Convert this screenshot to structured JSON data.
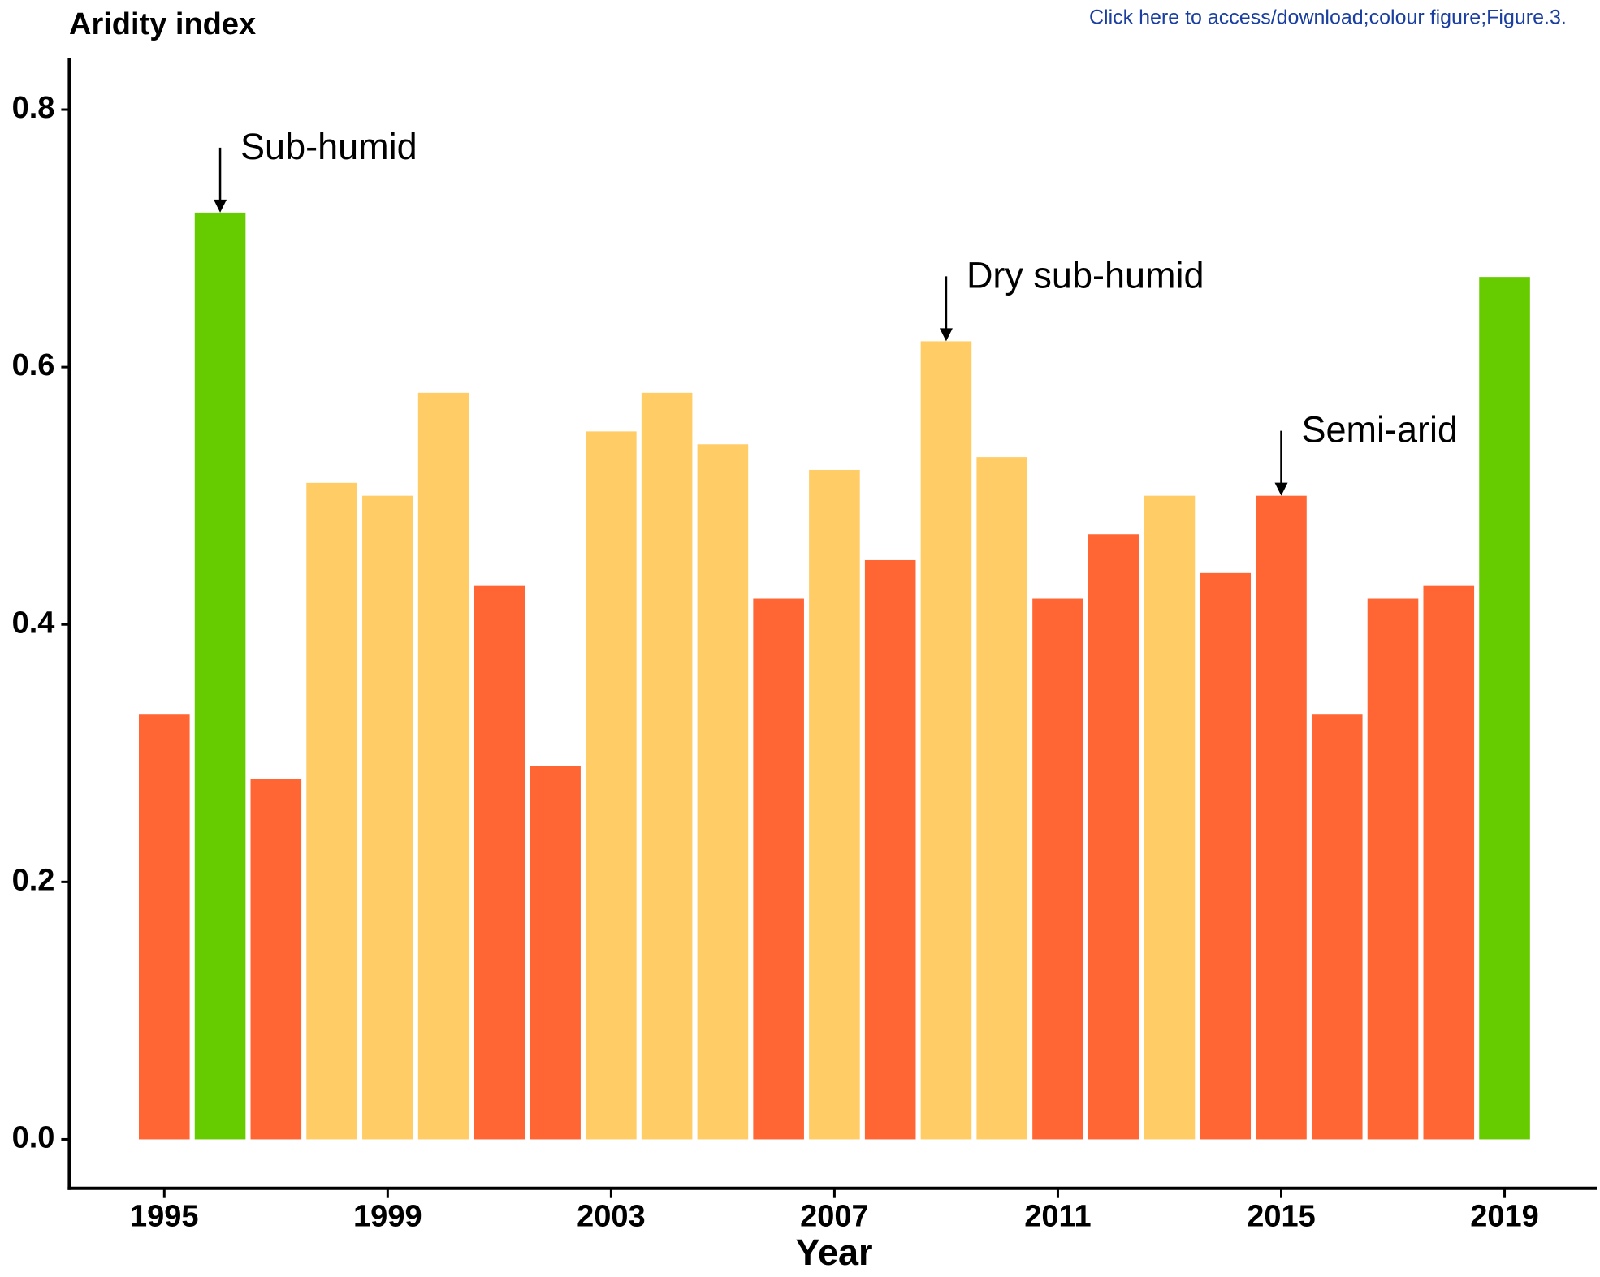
{
  "header_link": "Click here to access/download;colour figure;Figure.3.",
  "chart_data": {
    "type": "bar",
    "title": "Aridity index",
    "x_label": "Year",
    "x": [
      1995,
      1996,
      1997,
      1998,
      1999,
      2000,
      2001,
      2002,
      2003,
      2004,
      2005,
      2006,
      2007,
      2008,
      2009,
      2010,
      2011,
      2012,
      2013,
      2014,
      2015,
      2016,
      2017,
      2018,
      2019
    ],
    "values": [
      0.33,
      0.72,
      0.28,
      0.51,
      0.5,
      0.58,
      0.43,
      0.29,
      0.55,
      0.58,
      0.54,
      0.42,
      0.52,
      0.45,
      0.62,
      0.53,
      0.42,
      0.47,
      0.5,
      0.44,
      0.5,
      0.33,
      0.42,
      0.43,
      0.67
    ],
    "colors": [
      "#ff6633",
      "#66cc00",
      "#ff6633",
      "#ffcc66",
      "#ffcc66",
      "#ffcc66",
      "#ff6633",
      "#ff6633",
      "#ffcc66",
      "#ffcc66",
      "#ffcc66",
      "#ff6633",
      "#ffcc66",
      "#ff6633",
      "#ffcc66",
      "#ffcc66",
      "#ff6633",
      "#ff6633",
      "#ffcc66",
      "#ff6633",
      "#ff6633",
      "#ff6633",
      "#ff6633",
      "#ff6633",
      "#66cc00"
    ],
    "xlim": [
      1993.3,
      2020.65
    ],
    "xticks": [
      1995,
      1999,
      2003,
      2007,
      2011,
      2015,
      2019
    ],
    "ylim": [
      -0.038,
      0.84
    ],
    "yticks": [
      {
        "value": 0,
        "label": "0.0"
      },
      0.2,
      0.4,
      0.6,
      0.8
    ],
    "annotations": [
      {
        "text": "Sub-humid",
        "x": 1996
      },
      {
        "text": "Dry sub-humid",
        "x": 2009
      },
      {
        "text": "Semi-arid",
        "x": 2015
      }
    ]
  }
}
